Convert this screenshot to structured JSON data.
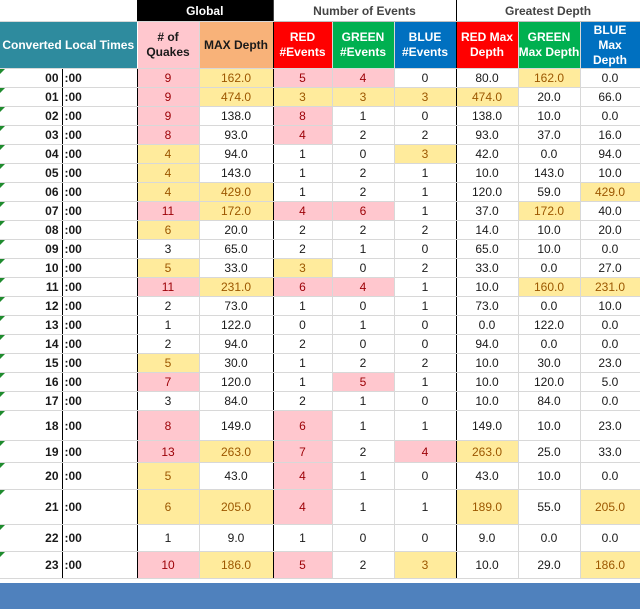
{
  "headers": {
    "global": "Global",
    "events": "Number of Events",
    "depth": "Greatest Depth",
    "converted": "Converted Local Times",
    "quakes": "# of Quakes",
    "max_depth": "MAX Depth",
    "red_events": "RED #Events",
    "green_events": "GREEN #Events",
    "blue_events": "BLUE #Events",
    "red_max": "RED Max Depth",
    "green_max": "GREEN Max Depth",
    "blue_max": "BLUE Max Depth"
  },
  "colors": {
    "teal": "#2e8b9e",
    "red": "#ff0000",
    "green": "#00b050",
    "blue": "#0070c0",
    "pink_fill": "#ffc7ce",
    "yellow_fill": "#ffeb9c",
    "footer": "#4f81bd"
  },
  "rows": [
    {
      "hour": "00",
      "min": ":00",
      "quakes": "9",
      "maxdepth": "162.0",
      "red": "5",
      "green": "4",
      "blue": "0",
      "redmax": "80.0",
      "greenmax": "162.0",
      "bluemax": "0.0"
    },
    {
      "hour": "01",
      "min": ":00",
      "quakes": "9",
      "maxdepth": "474.0",
      "red": "3",
      "green": "3",
      "blue": "3",
      "redmax": "474.0",
      "greenmax": "20.0",
      "bluemax": "66.0"
    },
    {
      "hour": "02",
      "min": ":00",
      "quakes": "9",
      "maxdepth": "138.0",
      "red": "8",
      "green": "1",
      "blue": "0",
      "redmax": "138.0",
      "greenmax": "10.0",
      "bluemax": "0.0"
    },
    {
      "hour": "03",
      "min": ":00",
      "quakes": "8",
      "maxdepth": "93.0",
      "red": "4",
      "green": "2",
      "blue": "2",
      "redmax": "93.0",
      "greenmax": "37.0",
      "bluemax": "16.0"
    },
    {
      "hour": "04",
      "min": ":00",
      "quakes": "4",
      "maxdepth": "94.0",
      "red": "1",
      "green": "0",
      "blue": "3",
      "redmax": "42.0",
      "greenmax": "0.0",
      "bluemax": "94.0"
    },
    {
      "hour": "05",
      "min": ":00",
      "quakes": "4",
      "maxdepth": "143.0",
      "red": "1",
      "green": "2",
      "blue": "1",
      "redmax": "10.0",
      "greenmax": "143.0",
      "bluemax": "10.0"
    },
    {
      "hour": "06",
      "min": ":00",
      "quakes": "4",
      "maxdepth": "429.0",
      "red": "1",
      "green": "2",
      "blue": "1",
      "redmax": "120.0",
      "greenmax": "59.0",
      "bluemax": "429.0"
    },
    {
      "hour": "07",
      "min": ":00",
      "quakes": "11",
      "maxdepth": "172.0",
      "red": "4",
      "green": "6",
      "blue": "1",
      "redmax": "37.0",
      "greenmax": "172.0",
      "bluemax": "40.0"
    },
    {
      "hour": "08",
      "min": ":00",
      "quakes": "6",
      "maxdepth": "20.0",
      "red": "2",
      "green": "2",
      "blue": "2",
      "redmax": "14.0",
      "greenmax": "10.0",
      "bluemax": "20.0"
    },
    {
      "hour": "09",
      "min": ":00",
      "quakes": "3",
      "maxdepth": "65.0",
      "red": "2",
      "green": "1",
      "blue": "0",
      "redmax": "65.0",
      "greenmax": "10.0",
      "bluemax": "0.0"
    },
    {
      "hour": "10",
      "min": ":00",
      "quakes": "5",
      "maxdepth": "33.0",
      "red": "3",
      "green": "0",
      "blue": "2",
      "redmax": "33.0",
      "greenmax": "0.0",
      "bluemax": "27.0"
    },
    {
      "hour": "11",
      "min": ":00",
      "quakes": "11",
      "maxdepth": "231.0",
      "red": "6",
      "green": "4",
      "blue": "1",
      "redmax": "10.0",
      "greenmax": "160.0",
      "bluemax": "231.0"
    },
    {
      "hour": "12",
      "min": ":00",
      "quakes": "2",
      "maxdepth": "73.0",
      "red": "1",
      "green": "0",
      "blue": "1",
      "redmax": "73.0",
      "greenmax": "0.0",
      "bluemax": "10.0"
    },
    {
      "hour": "13",
      "min": ":00",
      "quakes": "1",
      "maxdepth": "122.0",
      "red": "0",
      "green": "1",
      "blue": "0",
      "redmax": "0.0",
      "greenmax": "122.0",
      "bluemax": "0.0"
    },
    {
      "hour": "14",
      "min": ":00",
      "quakes": "2",
      "maxdepth": "94.0",
      "red": "2",
      "green": "0",
      "blue": "0",
      "redmax": "94.0",
      "greenmax": "0.0",
      "bluemax": "0.0"
    },
    {
      "hour": "15",
      "min": ":00",
      "quakes": "5",
      "maxdepth": "30.0",
      "red": "1",
      "green": "2",
      "blue": "2",
      "redmax": "10.0",
      "greenmax": "30.0",
      "bluemax": "23.0"
    },
    {
      "hour": "16",
      "min": ":00",
      "quakes": "7",
      "maxdepth": "120.0",
      "red": "1",
      "green": "5",
      "blue": "1",
      "redmax": "10.0",
      "greenmax": "120.0",
      "bluemax": "5.0"
    },
    {
      "hour": "17",
      "min": ":00",
      "quakes": "3",
      "maxdepth": "84.0",
      "red": "2",
      "green": "1",
      "blue": "0",
      "redmax": "10.0",
      "greenmax": "84.0",
      "bluemax": "0.0"
    },
    {
      "hour": "18",
      "min": ":00",
      "quakes": "8",
      "maxdepth": "149.0",
      "red": "6",
      "green": "1",
      "blue": "1",
      "redmax": "149.0",
      "greenmax": "10.0",
      "bluemax": "23.0"
    },
    {
      "hour": "19",
      "min": ":00",
      "quakes": "13",
      "maxdepth": "263.0",
      "red": "7",
      "green": "2",
      "blue": "4",
      "redmax": "263.0",
      "greenmax": "25.0",
      "bluemax": "33.0"
    },
    {
      "hour": "20",
      "min": ":00",
      "quakes": "5",
      "maxdepth": "43.0",
      "red": "4",
      "green": "1",
      "blue": "0",
      "redmax": "43.0",
      "greenmax": "10.0",
      "bluemax": "0.0"
    },
    {
      "hour": "21",
      "min": ":00",
      "quakes": "6",
      "maxdepth": "205.0",
      "red": "4",
      "green": "1",
      "blue": "1",
      "redmax": "189.0",
      "greenmax": "55.0",
      "bluemax": "205.0"
    },
    {
      "hour": "22",
      "min": ":00",
      "quakes": "1",
      "maxdepth": "9.0",
      "red": "1",
      "green": "0",
      "blue": "0",
      "redmax": "9.0",
      "greenmax": "0.0",
      "bluemax": "0.0"
    },
    {
      "hour": "23",
      "min": ":00",
      "quakes": "10",
      "maxdepth": "186.0",
      "red": "5",
      "green": "2",
      "blue": "3",
      "redmax": "10.0",
      "greenmax": "29.0",
      "bluemax": "186.0"
    }
  ],
  "highlights": {
    "quakes": [
      "pink",
      "pink",
      "pink",
      "pink",
      "yel",
      "yel",
      "yel",
      "pink",
      "yel",
      "none",
      "yel",
      "pink",
      "none",
      "none",
      "none",
      "yel",
      "pink",
      "none",
      "pink",
      "pink",
      "yel",
      "yel",
      "none",
      "pink"
    ],
    "maxdepth": [
      "yel",
      "yel",
      "none",
      "none",
      "none",
      "none",
      "yel",
      "yel",
      "none",
      "none",
      "none",
      "yel",
      "none",
      "none",
      "none",
      "none",
      "none",
      "none",
      "none",
      "yel",
      "none",
      "yel",
      "none",
      "yel"
    ],
    "red": [
      "pink",
      "yel",
      "pink",
      "pink",
      "none",
      "none",
      "none",
      "pink",
      "none",
      "none",
      "yel",
      "pink",
      "none",
      "none",
      "none",
      "none",
      "none",
      "none",
      "pink",
      "pink",
      "pink",
      "pink",
      "none",
      "pink"
    ],
    "green": [
      "pink",
      "yel",
      "none",
      "none",
      "none",
      "none",
      "none",
      "pink",
      "none",
      "none",
      "none",
      "pink",
      "none",
      "none",
      "none",
      "none",
      "pink",
      "none",
      "none",
      "none",
      "none",
      "none",
      "none",
      "none"
    ],
    "blue": [
      "none",
      "yel",
      "none",
      "none",
      "yel",
      "none",
      "none",
      "none",
      "none",
      "none",
      "none",
      "none",
      "none",
      "none",
      "none",
      "none",
      "none",
      "none",
      "none",
      "pink",
      "none",
      "none",
      "none",
      "yel"
    ],
    "redmax": [
      "none",
      "yel",
      "none",
      "none",
      "none",
      "none",
      "none",
      "none",
      "none",
      "none",
      "none",
      "none",
      "none",
      "none",
      "none",
      "none",
      "none",
      "none",
      "none",
      "yel",
      "none",
      "yel",
      "none",
      "none"
    ],
    "greenmax": [
      "yel",
      "none",
      "none",
      "none",
      "none",
      "none",
      "none",
      "yel",
      "none",
      "none",
      "none",
      "yel",
      "none",
      "none",
      "none",
      "none",
      "none",
      "none",
      "none",
      "none",
      "none",
      "none",
      "none",
      "none"
    ],
    "bluemax": [
      "none",
      "none",
      "none",
      "none",
      "none",
      "none",
      "yel",
      "none",
      "none",
      "none",
      "none",
      "yel",
      "none",
      "none",
      "none",
      "none",
      "none",
      "none",
      "none",
      "none",
      "none",
      "yel",
      "none",
      "yel"
    ]
  }
}
